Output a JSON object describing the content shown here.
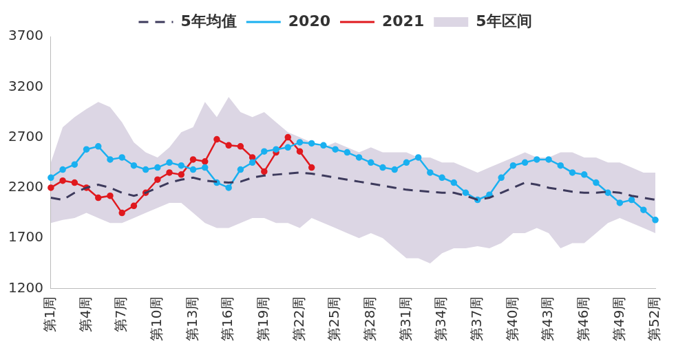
{
  "chart_data": {
    "type": "line",
    "categories": [
      "第1周",
      null,
      null,
      "第4周",
      null,
      null,
      "第7周",
      null,
      null,
      "第10周",
      null,
      null,
      "第13周",
      null,
      null,
      "第16周",
      null,
      null,
      "第19周",
      null,
      null,
      "第22周",
      null,
      null,
      "第25周",
      null,
      null,
      "第28周",
      null,
      null,
      "第31周",
      null,
      null,
      "第34周",
      null,
      null,
      "第37周",
      null,
      null,
      "第40周",
      null,
      null,
      "第43周",
      null,
      null,
      "第46周",
      null,
      null,
      "第49周",
      null,
      null,
      "第52周"
    ],
    "ylim": [
      1200,
      3700
    ],
    "yticks": [
      1200,
      1700,
      2200,
      2700,
      3200,
      3700
    ],
    "grid": false,
    "legend": "top",
    "series": [
      {
        "name": "5年区间",
        "type": "area",
        "color": "#dcd6e4",
        "values": [
          [
            1850,
            2450
          ],
          [
            1880,
            2800
          ],
          [
            1900,
            2900
          ],
          [
            1950,
            2980
          ],
          [
            1900,
            3050
          ],
          [
            1850,
            3000
          ],
          [
            1850,
            2850
          ],
          [
            1900,
            2650
          ],
          [
            1950,
            2550
          ],
          [
            2000,
            2500
          ],
          [
            2050,
            2600
          ],
          [
            2050,
            2750
          ],
          [
            1950,
            2800
          ],
          [
            1850,
            3050
          ],
          [
            1800,
            2900
          ],
          [
            1800,
            3100
          ],
          [
            1850,
            2950
          ],
          [
            1900,
            2900
          ],
          [
            1900,
            2950
          ],
          [
            1850,
            2850
          ],
          [
            1850,
            2750
          ],
          [
            1800,
            2700
          ],
          [
            1900,
            2650
          ],
          [
            1850,
            2600
          ],
          [
            1800,
            2650
          ],
          [
            1750,
            2600
          ],
          [
            1700,
            2550
          ],
          [
            1750,
            2600
          ],
          [
            1700,
            2550
          ],
          [
            1600,
            2550
          ],
          [
            1500,
            2550
          ],
          [
            1500,
            2500
          ],
          [
            1450,
            2500
          ],
          [
            1550,
            2450
          ],
          [
            1600,
            2450
          ],
          [
            1600,
            2400
          ],
          [
            1620,
            2350
          ],
          [
            1600,
            2400
          ],
          [
            1650,
            2450
          ],
          [
            1750,
            2500
          ],
          [
            1750,
            2550
          ],
          [
            1800,
            2500
          ],
          [
            1750,
            2500
          ],
          [
            1600,
            2550
          ],
          [
            1650,
            2550
          ],
          [
            1650,
            2500
          ],
          [
            1750,
            2500
          ],
          [
            1850,
            2450
          ],
          [
            1900,
            2450
          ],
          [
            1850,
            2400
          ],
          [
            1800,
            2350
          ],
          [
            1750,
            2350
          ]
        ]
      },
      {
        "name": "5年均值",
        "color": "#3d3a5c",
        "line_style": "dashed",
        "values": [
          2100,
          2080,
          2150,
          2200,
          2230,
          2200,
          2150,
          2120,
          2150,
          2200,
          2250,
          2280,
          2300,
          2270,
          2260,
          2250,
          2260,
          2300,
          2320,
          2330,
          2340,
          2350,
          2340,
          2320,
          2300,
          2280,
          2260,
          2240,
          2220,
          2200,
          2180,
          2170,
          2160,
          2150,
          2150,
          2120,
          2080,
          2100,
          2150,
          2200,
          2250,
          2230,
          2200,
          2180,
          2160,
          2150,
          2150,
          2160,
          2150,
          2120,
          2100,
          2080
        ]
      },
      {
        "name": "2020",
        "color": "#1ab0f0",
        "marker": "circle",
        "values": [
          2300,
          2380,
          2430,
          2580,
          2610,
          2480,
          2500,
          2420,
          2380,
          2400,
          2450,
          2420,
          2380,
          2400,
          2250,
          2200,
          2380,
          2450,
          2560,
          2580,
          2600,
          2650,
          2640,
          2620,
          2580,
          2550,
          2500,
          2450,
          2400,
          2380,
          2450,
          2500,
          2350,
          2300,
          2250,
          2150,
          2080,
          2130,
          2300,
          2420,
          2450,
          2480,
          2480,
          2420,
          2350,
          2330,
          2250,
          2150,
          2050,
          2080,
          1980,
          1880
        ]
      },
      {
        "name": "2021",
        "color": "#e0191e",
        "marker": "circle",
        "values": [
          2200,
          2270,
          2250,
          2200,
          2100,
          2120,
          1950,
          2020,
          2150,
          2280,
          2350,
          2330,
          2480,
          2460,
          2680,
          2620,
          2610,
          2500,
          2360,
          2550,
          2700,
          2560,
          2400,
          null,
          null,
          null,
          null,
          null,
          null,
          null,
          null,
          null,
          null,
          null,
          null,
          null,
          null,
          null,
          null,
          null,
          null,
          null,
          null,
          null,
          null,
          null,
          null,
          null,
          null,
          null,
          null,
          null
        ]
      }
    ]
  }
}
